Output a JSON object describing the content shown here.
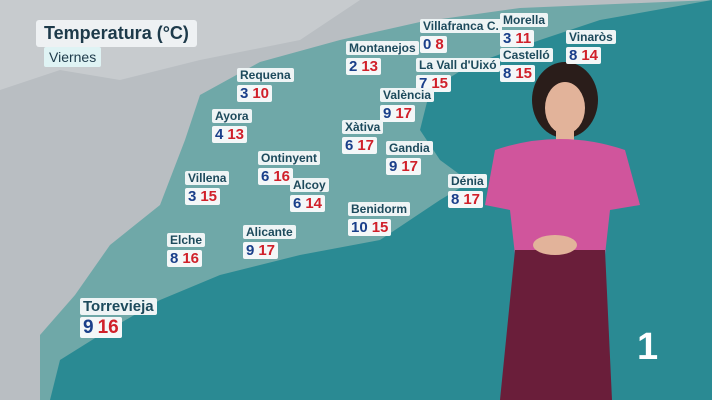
{
  "header": {
    "title": "Temperatura (°C)",
    "subtitle": "Viernes"
  },
  "cities": [
    {
      "name": "Villafranca C.",
      "min": "0",
      "max": "8"
    },
    {
      "name": "Morella",
      "min": "3",
      "max": "11"
    },
    {
      "name": "Vinaròs",
      "min": "8",
      "max": "14"
    },
    {
      "name": "Montanejos",
      "min": "2",
      "max": "13"
    },
    {
      "name": "Castelló",
      "min": "8",
      "max": "15"
    },
    {
      "name": "La Vall d'Uixó",
      "min": "7",
      "max": "15"
    },
    {
      "name": "Requena",
      "min": "3",
      "max": "10"
    },
    {
      "name": "València",
      "min": "9",
      "max": "17"
    },
    {
      "name": "Ayora",
      "min": "4",
      "max": "13"
    },
    {
      "name": "Xàtiva",
      "min": "6",
      "max": "17"
    },
    {
      "name": "Gandia",
      "min": "9",
      "max": "17"
    },
    {
      "name": "Ontinyent",
      "min": "6",
      "max": "16"
    },
    {
      "name": "Dénia",
      "min": "8",
      "max": "17"
    },
    {
      "name": "Villena",
      "min": "3",
      "max": "15"
    },
    {
      "name": "Alcoy",
      "min": "6",
      "max": "14"
    },
    {
      "name": "Benidorm",
      "min": "10",
      "max": "15"
    },
    {
      "name": "Alicante",
      "min": "9",
      "max": "17"
    },
    {
      "name": "Elche",
      "min": "8",
      "max": "16"
    },
    {
      "name": "Torrevieja",
      "min": "9",
      "max": "16"
    }
  ],
  "logo": "1"
}
